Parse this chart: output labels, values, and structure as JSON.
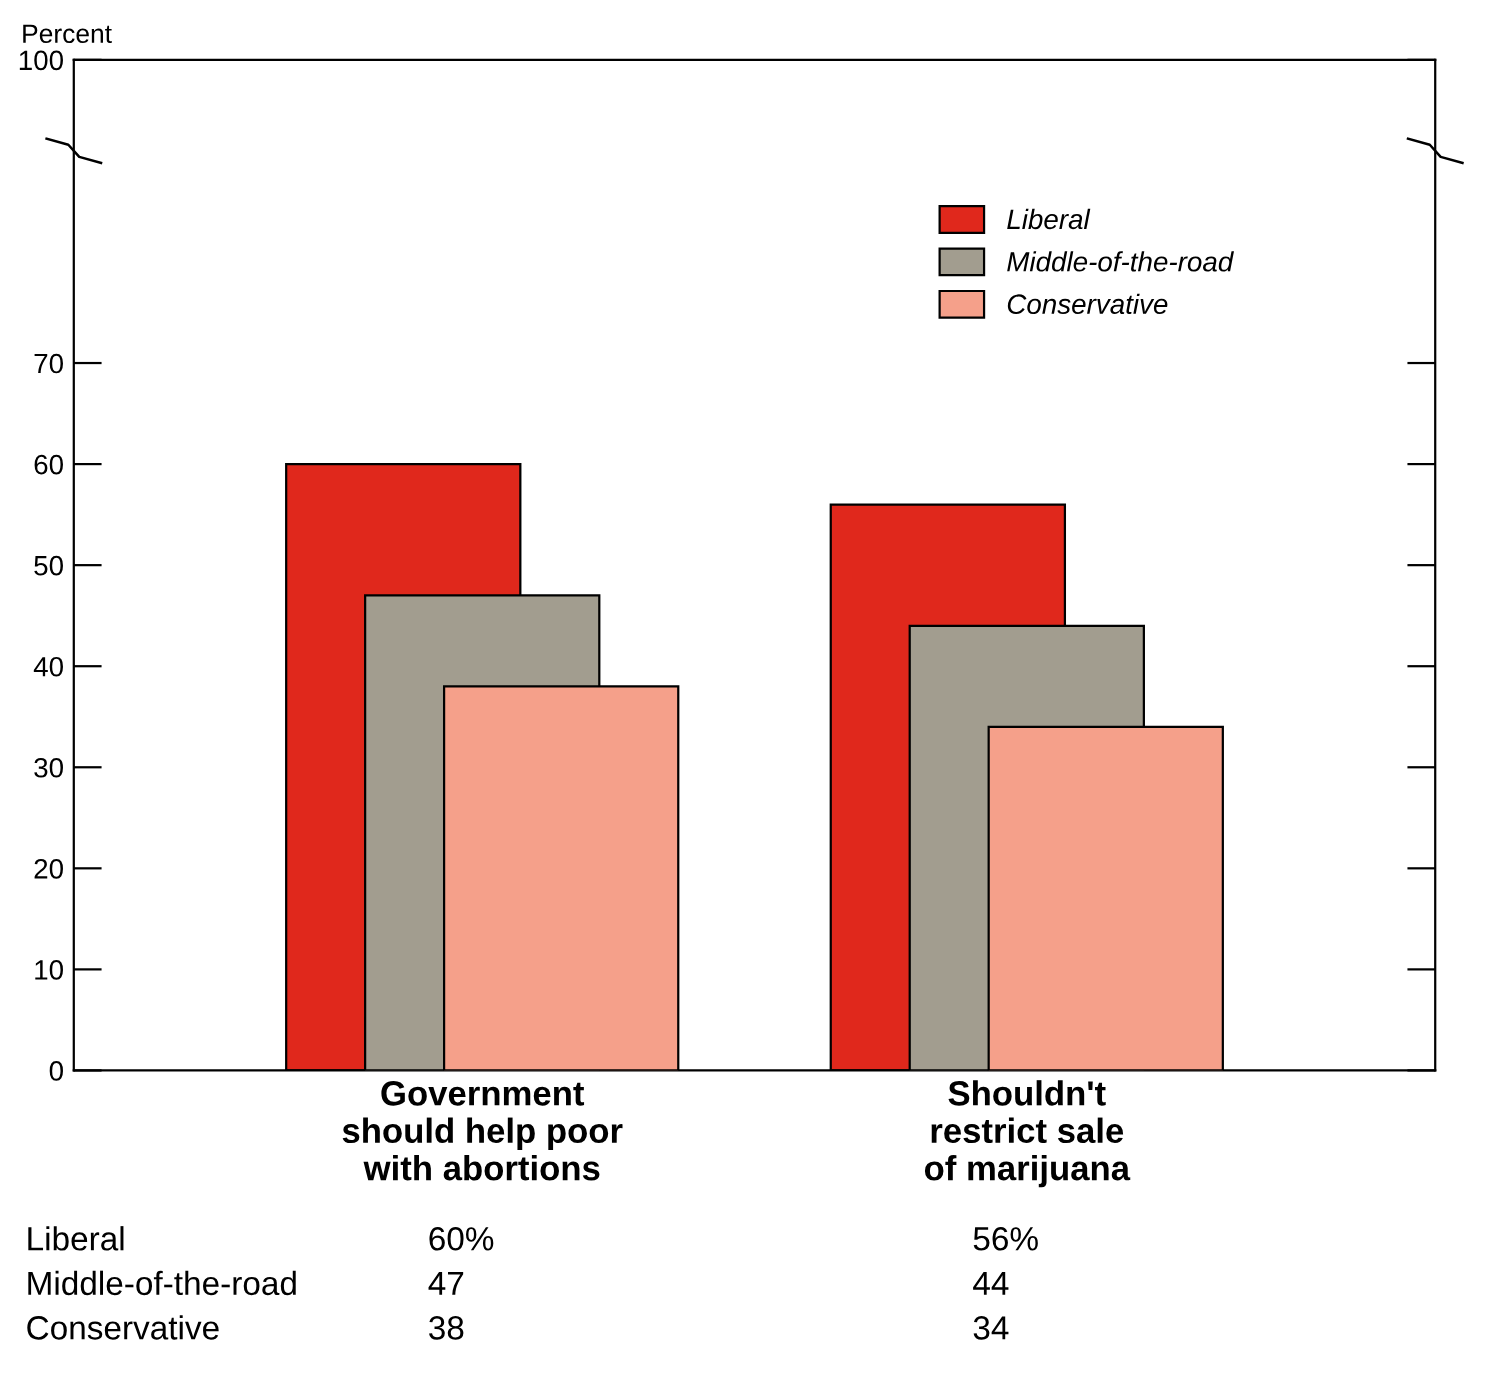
{
  "chart_data": {
    "type": "bar",
    "ylabel": "Percent",
    "categories": [
      "Government\nshould help poor\nwith abortions",
      "Shouldn't\nrestrict sale\nof marijuana"
    ],
    "series": [
      {
        "name": "Liberal",
        "color": "#e0281c",
        "values": [
          60,
          56
        ],
        "value_labels": [
          "60%",
          "56%"
        ]
      },
      {
        "name": "Middle-of-the-road",
        "color": "#a29d8f",
        "values": [
          47,
          44
        ],
        "value_labels": [
          "47",
          "44"
        ]
      },
      {
        "name": "Conservative",
        "color": "#f5a08a",
        "values": [
          38,
          34
        ],
        "value_labels": [
          "38",
          "34"
        ]
      }
    ],
    "ylim": [
      0,
      100
    ],
    "yticks": [
      0,
      10,
      20,
      30,
      40,
      50,
      60,
      70,
      100
    ],
    "grid": false,
    "legend": "top right"
  }
}
